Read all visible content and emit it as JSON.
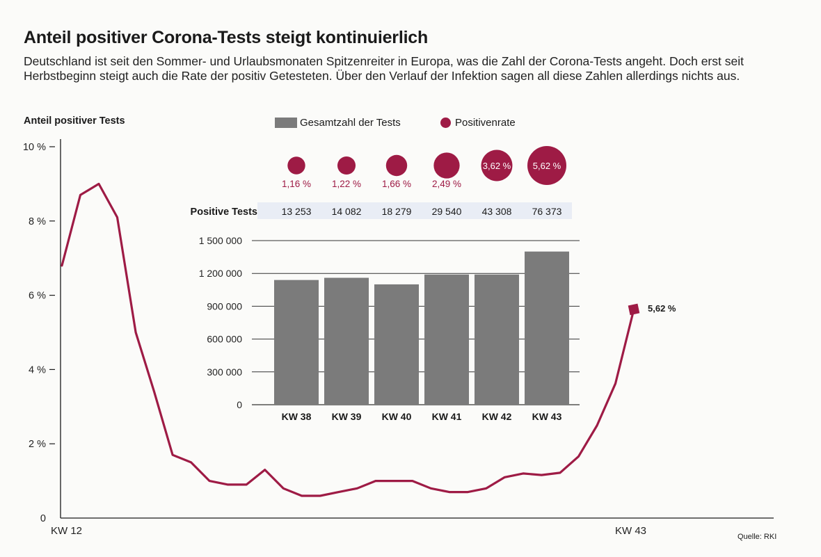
{
  "header": {
    "title": "Anteil positiver Corona-Tests steigt kontinuierlich",
    "subtitle": "Deutschland ist seit den Sommer- und Urlaubsmonaten Spitzenreiter in Europa, was die Zahl der Corona-Tests angeht. Doch erst seit Herbstbeginn steigt auch die Rate der positiv Getesteten. Über den Verlauf der Infektion sagen all diese Zahlen allerdings nichts aus."
  },
  "legend": {
    "bars": "Gesamtzahl der Tests",
    "rate": "Positivenrate"
  },
  "source": "Quelle: RKI",
  "colors": {
    "line": "#9e1b45",
    "bars": "#7b7b7b",
    "axis": "#1a1a1a"
  },
  "chart_data": [
    {
      "type": "line",
      "ylabel": "Anteil positiver Tests",
      "ylim": [
        0,
        10
      ],
      "yticks": [
        "10 %",
        "8 %",
        "6 %",
        "4 %",
        "2 %",
        "0"
      ],
      "xticks": [
        "KW 12",
        "KW 43"
      ],
      "x": [
        12,
        13,
        14,
        15,
        16,
        17,
        18,
        19,
        20,
        21,
        22,
        23,
        24,
        25,
        26,
        27,
        28,
        29,
        30,
        31,
        32,
        33,
        34,
        35,
        36,
        37,
        38,
        39,
        40,
        41,
        42,
        43
      ],
      "values": [
        6.8,
        8.7,
        9.0,
        8.1,
        5.0,
        3.4,
        1.7,
        1.5,
        1.0,
        0.9,
        0.9,
        1.3,
        0.8,
        0.6,
        0.6,
        0.7,
        0.8,
        1.0,
        1.0,
        1.0,
        0.8,
        0.7,
        0.7,
        0.8,
        1.1,
        1.2,
        1.16,
        1.22,
        1.66,
        2.49,
        3.62,
        5.62
      ],
      "end_label": "5,62 %"
    },
    {
      "type": "bar",
      "categories": [
        "KW 38",
        "KW 39",
        "KW 40",
        "KW 41",
        "KW 42",
        "KW 43"
      ],
      "values": [
        1140000,
        1160000,
        1100000,
        1190000,
        1190000,
        1400000
      ],
      "ylim": [
        0,
        1500000
      ],
      "yticks": [
        "1 500 000",
        "1 200 000",
        "900 000",
        "600 000",
        "300 000",
        "0"
      ],
      "series_name": "Gesamtzahl der Tests"
    },
    {
      "type": "scatter",
      "name": "Positivenrate",
      "categories": [
        "KW 38",
        "KW 39",
        "KW 40",
        "KW 41",
        "KW 42",
        "KW 43"
      ],
      "rates": [
        1.16,
        1.22,
        1.66,
        2.49,
        3.62,
        5.62
      ],
      "rate_labels": [
        "1,16 %",
        "1,22 %",
        "1,66 %",
        "2,49 %",
        "3,62 %",
        "5,62 %"
      ],
      "positive_tests_label": "Positive Tests",
      "positive_tests": [
        13253,
        14082,
        18279,
        29540,
        43308,
        76373
      ],
      "positive_tests_labels": [
        "13 253",
        "14 082",
        "18 279",
        "29 540",
        "43 308",
        "76 373"
      ]
    }
  ]
}
